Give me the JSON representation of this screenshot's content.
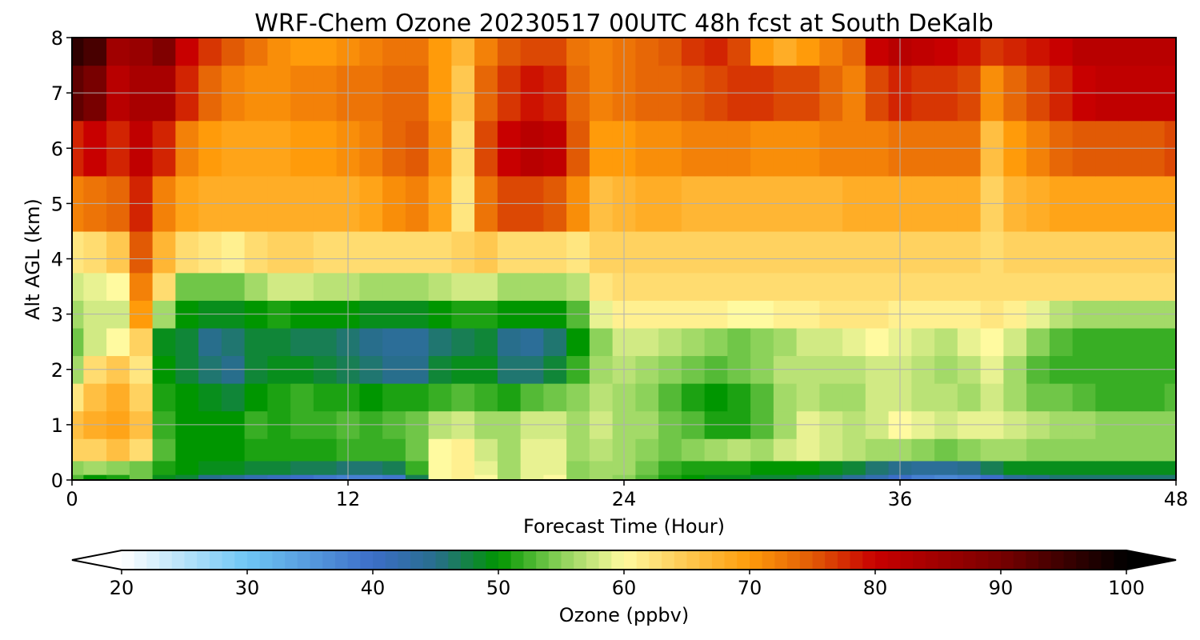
{
  "chart_data": {
    "type": "heatmap",
    "title": "WRF-Chem Ozone  20230517 00UTC 48h fcst at South DeKalb",
    "xlabel": "Forecast Time (Hour)",
    "ylabel": "Alt AGL (km)",
    "xlim": [
      0,
      48
    ],
    "ylim": [
      0,
      8
    ],
    "xticks": [
      0,
      12,
      24,
      36,
      48
    ],
    "yticks": [
      0,
      1,
      2,
      3,
      4,
      5,
      6,
      7,
      8
    ],
    "grid": true,
    "x": [
      0,
      1,
      2,
      3,
      4,
      5,
      6,
      7,
      8,
      9,
      10,
      11,
      12,
      13,
      14,
      15,
      16,
      17,
      18,
      19,
      20,
      21,
      22,
      23,
      24,
      25,
      26,
      27,
      28,
      29,
      30,
      31,
      32,
      33,
      34,
      35,
      36,
      37,
      38,
      39,
      40,
      41,
      42,
      43,
      44,
      45,
      46,
      47,
      48
    ],
    "y": [
      0,
      0.2,
      0.5,
      1,
      1.5,
      2,
      2.5,
      3,
      3.5,
      4,
      5,
      6,
      7,
      8
    ],
    "z_units": "ppbv",
    "z": [
      [
        53,
        50,
        51,
        54,
        49,
        48,
        45,
        44,
        42,
        41,
        40,
        39,
        38,
        38,
        39,
        47,
        60,
        61,
        60,
        56,
        59,
        60,
        55,
        56,
        55,
        53,
        51,
        50,
        49,
        49,
        48,
        48,
        47,
        46,
        44,
        42,
        40,
        38,
        37,
        38,
        40,
        44,
        45,
        46,
        46,
        46,
        46,
        46,
        46
      ],
      [
        55,
        56,
        55,
        54,
        51,
        50,
        49,
        49,
        48,
        48,
        47,
        47,
        46,
        46,
        47,
        52,
        60,
        61,
        59,
        56,
        59,
        59,
        55,
        56,
        56,
        54,
        52,
        51,
        51,
        51,
        50,
        50,
        50,
        49,
        48,
        46,
        45,
        44,
        44,
        45,
        47,
        49,
        49,
        49,
        49,
        49,
        49,
        49,
        49
      ],
      [
        64,
        64,
        66,
        63,
        53,
        50,
        50,
        50,
        51,
        51,
        51,
        51,
        52,
        52,
        52,
        54,
        60,
        61,
        58,
        56,
        59,
        59,
        56,
        57,
        56,
        55,
        54,
        55,
        56,
        57,
        56,
        58,
        59,
        58,
        57,
        56,
        56,
        55,
        54,
        55,
        56,
        56,
        55,
        55,
        55,
        55,
        55,
        55,
        55
      ],
      [
        66,
        68,
        69,
        66,
        52,
        50,
        50,
        50,
        52,
        51,
        52,
        52,
        53,
        52,
        53,
        54,
        57,
        58,
        56,
        56,
        58,
        58,
        56,
        58,
        56,
        56,
        54,
        53,
        51,
        51,
        53,
        56,
        59,
        58,
        57,
        58,
        60,
        59,
        58,
        59,
        59,
        58,
        57,
        56,
        56,
        55,
        55,
        55,
        55
      ],
      [
        62,
        66,
        68,
        64,
        51,
        50,
        49,
        48,
        50,
        51,
        52,
        51,
        51,
        50,
        51,
        51,
        52,
        53,
        52,
        51,
        53,
        54,
        55,
        57,
        56,
        55,
        53,
        51,
        50,
        51,
        53,
        56,
        57,
        56,
        56,
        58,
        58,
        57,
        57,
        56,
        58,
        56,
        54,
        54,
        53,
        52,
        52,
        52,
        53
      ],
      [
        56,
        63,
        65,
        62,
        50,
        48,
        46,
        45,
        48,
        49,
        49,
        48,
        47,
        46,
        45,
        45,
        48,
        49,
        49,
        46,
        46,
        48,
        52,
        56,
        57,
        56,
        55,
        54,
        53,
        54,
        55,
        57,
        57,
        57,
        57,
        58,
        58,
        57,
        56,
        57,
        59,
        56,
        53,
        52,
        52,
        52,
        52,
        52,
        52
      ],
      [
        54,
        58,
        60,
        64,
        49,
        48,
        45,
        46,
        48,
        48,
        47,
        47,
        46,
        45,
        44,
        44,
        46,
        47,
        48,
        45,
        44,
        46,
        50,
        55,
        58,
        58,
        57,
        56,
        55,
        54,
        55,
        56,
        58,
        58,
        59,
        60,
        59,
        58,
        57,
        59,
        60,
        58,
        55,
        53,
        52,
        52,
        52,
        52,
        52
      ],
      [
        56,
        58,
        58,
        70,
        56,
        50,
        49,
        49,
        50,
        51,
        50,
        50,
        50,
        49,
        49,
        49,
        50,
        51,
        51,
        50,
        50,
        50,
        53,
        59,
        61,
        61,
        61,
        61,
        61,
        60,
        60,
        61,
        61,
        62,
        62,
        62,
        61,
        61,
        61,
        61,
        62,
        61,
        59,
        57,
        56,
        56,
        56,
        56,
        56
      ],
      [
        58,
        59,
        60,
        72,
        63,
        54,
        54,
        54,
        56,
        58,
        58,
        57,
        57,
        56,
        56,
        56,
        57,
        58,
        58,
        56,
        56,
        56,
        57,
        62,
        63,
        63,
        63,
        63,
        63,
        63,
        63,
        63,
        63,
        63,
        63,
        63,
        63,
        63,
        63,
        63,
        63,
        63,
        63,
        63,
        63,
        63,
        63,
        63,
        63
      ],
      [
        62,
        63,
        65,
        75,
        67,
        63,
        62,
        61,
        63,
        64,
        64,
        63,
        63,
        63,
        63,
        63,
        63,
        64,
        65,
        63,
        63,
        63,
        62,
        64,
        64,
        64,
        64,
        64,
        64,
        64,
        64,
        64,
        64,
        64,
        64,
        64,
        64,
        64,
        64,
        64,
        63,
        64,
        64,
        64,
        64,
        64,
        64,
        64,
        64
      ],
      [
        72,
        73,
        74,
        78,
        72,
        69,
        68,
        68,
        68,
        68,
        68,
        68,
        68,
        69,
        71,
        72,
        69,
        62,
        73,
        76,
        76,
        75,
        71,
        66,
        67,
        68,
        68,
        67,
        67,
        67,
        67,
        67,
        67,
        67,
        68,
        68,
        68,
        68,
        68,
        68,
        64,
        67,
        68,
        69,
        69,
        69,
        69,
        69,
        69
      ],
      [
        78,
        80,
        78,
        81,
        78,
        72,
        70,
        69,
        69,
        69,
        70,
        70,
        71,
        72,
        74,
        75,
        71,
        63,
        76,
        80,
        82,
        81,
        75,
        70,
        70,
        71,
        71,
        72,
        72,
        72,
        71,
        71,
        71,
        72,
        72,
        72,
        73,
        73,
        73,
        73,
        66,
        70,
        72,
        74,
        75,
        75,
        75,
        75,
        76
      ],
      [
        92,
        90,
        82,
        84,
        84,
        78,
        74,
        72,
        71,
        71,
        72,
        72,
        73,
        73,
        74,
        74,
        70,
        65,
        74,
        77,
        79,
        78,
        74,
        72,
        73,
        74,
        74,
        75,
        76,
        77,
        77,
        76,
        76,
        74,
        72,
        76,
        78,
        77,
        77,
        76,
        71,
        74,
        76,
        78,
        80,
        81,
        81,
        81,
        81
      ],
      [
        96,
        94,
        85,
        86,
        89,
        80,
        77,
        75,
        73,
        71,
        70,
        70,
        71,
        72,
        73,
        73,
        70,
        67,
        72,
        75,
        76,
        76,
        73,
        72,
        73,
        74,
        75,
        77,
        78,
        76,
        70,
        68,
        70,
        72,
        74,
        80,
        82,
        81,
        80,
        79,
        77,
        78,
        79,
        80,
        82,
        82,
        82,
        82,
        82
      ]
    ]
  },
  "colorbar": {
    "label": "Ozone  (ppbv)",
    "min": 20,
    "max": 100,
    "ticks": [
      20,
      30,
      40,
      50,
      60,
      70,
      80,
      90,
      100
    ],
    "extend": "both",
    "stops": [
      {
        "v": 20,
        "c": "#ffffff"
      },
      {
        "v": 30,
        "c": "#6ec6f4"
      },
      {
        "v": 40,
        "c": "#3c6ec8"
      },
      {
        "v": 45,
        "c": "#286e8c"
      },
      {
        "v": 50,
        "c": "#009600"
      },
      {
        "v": 55,
        "c": "#8cd25a"
      },
      {
        "v": 60,
        "c": "#fffaa0"
      },
      {
        "v": 65,
        "c": "#ffc850"
      },
      {
        "v": 70,
        "c": "#ff9b0a"
      },
      {
        "v": 75,
        "c": "#e15a05"
      },
      {
        "v": 80,
        "c": "#c80000"
      },
      {
        "v": 90,
        "c": "#780000"
      },
      {
        "v": 100,
        "c": "#000000"
      }
    ]
  }
}
